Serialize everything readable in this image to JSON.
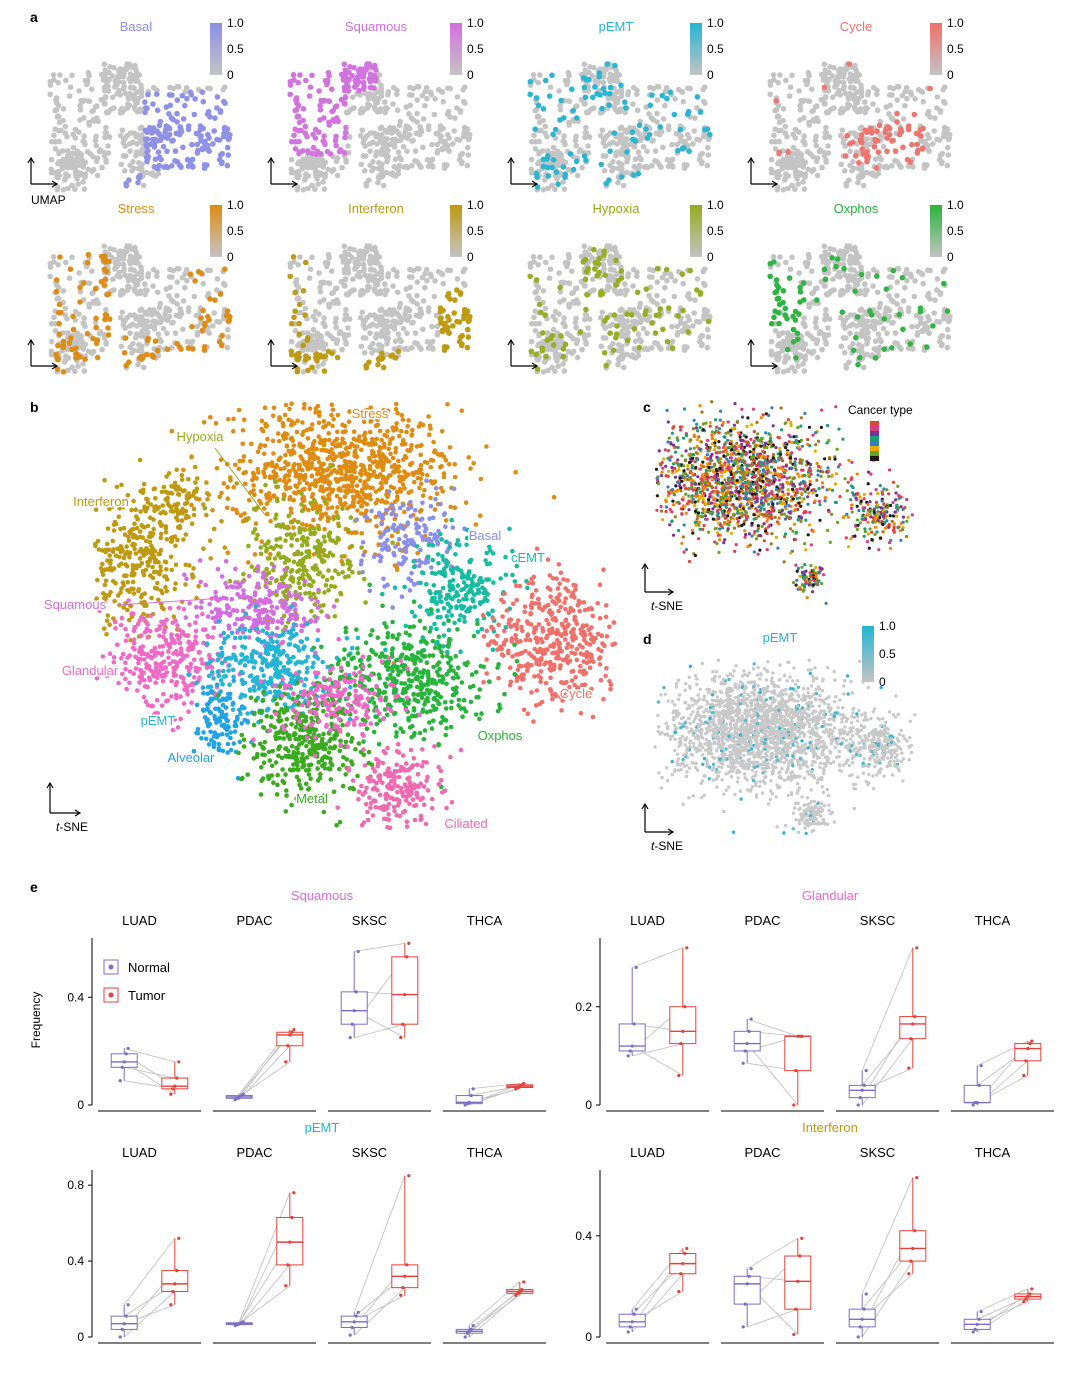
{
  "panels": {
    "a": "a",
    "b": "b",
    "c": "c",
    "d": "d",
    "e": "e"
  },
  "umap_axis_label": "UMAP",
  "tsne_label": "t-SNE",
  "scale_ticks": [
    "1.0",
    "0.5",
    "0"
  ],
  "colors": {
    "Basal": "#8b8fe8",
    "Squamous": "#d36ee0",
    "pEMT": "#23b5d3",
    "Cycle": "#f0706a",
    "Stress": "#de8c12",
    "Interferon": "#bf9a10",
    "Hypoxia": "#94ac1c",
    "Oxphos": "#27b43a",
    "Glandular": "#ef6ac6",
    "cEMT": "#15bda0",
    "Metal": "#3aaa1f",
    "Alveolar": "#22a3e6",
    "Ciliated": "#ef6aae",
    "grey": "#c4c4c4",
    "normal": "#7b6fc4",
    "tumor": "#e3423a"
  },
  "chart_data": [
    {
      "panel": "a",
      "type": "scatter",
      "description_axes": "UMAP",
      "subplots": [
        {
          "title": "Basal",
          "scale": [
            0,
            1.0
          ]
        },
        {
          "title": "Squamous",
          "scale": [
            0,
            1.0
          ]
        },
        {
          "title": "pEMT",
          "scale": [
            0,
            1.0
          ]
        },
        {
          "title": "Cycle",
          "scale": [
            0,
            1.0
          ]
        },
        {
          "title": "Stress",
          "scale": [
            0,
            1.0
          ]
        },
        {
          "title": "Interferon",
          "scale": [
            0,
            1.0
          ]
        },
        {
          "title": "Hypoxia",
          "scale": [
            0,
            1.0
          ]
        },
        {
          "title": "Oxphos",
          "scale": [
            0,
            1.0
          ]
        }
      ]
    },
    {
      "panel": "b",
      "type": "scatter",
      "xlabel": "t-SNE",
      "clusters": [
        "Stress",
        "Hypoxia",
        "Interferon",
        "Basal",
        "cEMT",
        "Squamous",
        "Glandular",
        "Cycle",
        "pEMT",
        "Oxphos",
        "Alveolar",
        "Metal",
        "Ciliated"
      ]
    },
    {
      "panel": "c",
      "type": "scatter",
      "xlabel": "t-SNE",
      "legend_title": "Cancer type"
    },
    {
      "panel": "d",
      "type": "scatter",
      "xlabel": "t-SNE",
      "title": "pEMT",
      "scale": [
        "1.0",
        "0.5",
        "0"
      ]
    },
    {
      "panel": "e",
      "type": "box",
      "ylabel": "Frequency",
      "legend": [
        "Normal",
        "Tumor"
      ],
      "groups": [
        {
          "title": "Squamous",
          "categories": [
            "LUAD",
            "PDAC",
            "SKSC",
            "THCA"
          ],
          "yticks": [
            "0.4",
            "0"
          ],
          "ylim": [
            0,
            0.62
          ],
          "series": [
            {
              "name": "Normal",
              "boxes": [
                [
                  0.09,
                  0.14,
                  0.16,
                  0.19,
                  0.21
                ],
                [
                  0.02,
                  0.025,
                  0.03,
                  0.035,
                  0.04
                ],
                [
                  0.25,
                  0.3,
                  0.35,
                  0.42,
                  0.57
                ],
                [
                  0.0,
                  0.005,
                  0.01,
                  0.035,
                  0.06
                ]
              ]
            },
            {
              "name": "Tumor",
              "boxes": [
                [
                  0.04,
                  0.06,
                  0.07,
                  0.1,
                  0.16
                ],
                [
                  0.16,
                  0.22,
                  0.26,
                  0.27,
                  0.28
                ],
                [
                  0.25,
                  0.3,
                  0.41,
                  0.55,
                  0.6
                ],
                [
                  0.06,
                  0.065,
                  0.07,
                  0.075,
                  0.08
                ]
              ]
            }
          ]
        },
        {
          "title": "Glandular",
          "categories": [
            "LUAD",
            "PDAC",
            "SKSC",
            "THCA"
          ],
          "yticks": [
            "0.2",
            "0"
          ],
          "ylim": [
            0,
            0.34
          ],
          "series": [
            {
              "name": "Normal",
              "boxes": [
                [
                  0.1,
                  0.11,
                  0.12,
                  0.165,
                  0.28
                ],
                [
                  0.085,
                  0.11,
                  0.125,
                  0.15,
                  0.175
                ],
                [
                  0.0,
                  0.015,
                  0.03,
                  0.04,
                  0.07
                ],
                [
                  0.0,
                  0.005,
                  0.005,
                  0.04,
                  0.08
                ]
              ]
            },
            {
              "name": "Tumor",
              "boxes": [
                [
                  0.06,
                  0.125,
                  0.15,
                  0.2,
                  0.32
                ],
                [
                  0.0,
                  0.07,
                  0.14,
                  0.14,
                  0.14
                ],
                [
                  0.075,
                  0.135,
                  0.165,
                  0.18,
                  0.32
                ],
                [
                  0.06,
                  0.09,
                  0.115,
                  0.125,
                  0.13
                ]
              ]
            }
          ]
        },
        {
          "title": "pEMT",
          "categories": [
            "LUAD",
            "PDAC",
            "SKSC",
            "THCA"
          ],
          "yticks": [
            "0.8",
            "0.4",
            "0"
          ],
          "ylim": [
            0,
            0.88
          ],
          "series": [
            {
              "name": "Normal",
              "boxes": [
                [
                  0.0,
                  0.04,
                  0.07,
                  0.11,
                  0.17
                ],
                [
                  0.06,
                  0.065,
                  0.07,
                  0.075,
                  0.08
                ],
                [
                  0.01,
                  0.05,
                  0.08,
                  0.11,
                  0.13
                ],
                [
                  0.0,
                  0.02,
                  0.03,
                  0.04,
                  0.06
                ]
              ]
            },
            {
              "name": "Tumor",
              "boxes": [
                [
                  0.17,
                  0.24,
                  0.28,
                  0.35,
                  0.52
                ],
                [
                  0.27,
                  0.38,
                  0.5,
                  0.63,
                  0.76
                ],
                [
                  0.22,
                  0.26,
                  0.32,
                  0.38,
                  0.85
                ],
                [
                  0.22,
                  0.23,
                  0.24,
                  0.25,
                  0.29
                ]
              ]
            }
          ]
        },
        {
          "title": "Interferon",
          "categories": [
            "LUAD",
            "PDAC",
            "SKSC",
            "THCA"
          ],
          "yticks": [
            "0.4",
            "0"
          ],
          "ylim": [
            0,
            0.66
          ],
          "series": [
            {
              "name": "Normal",
              "boxes": [
                [
                  0.02,
                  0.04,
                  0.06,
                  0.09,
                  0.11
                ],
                [
                  0.04,
                  0.13,
                  0.21,
                  0.24,
                  0.27
                ],
                [
                  0.0,
                  0.04,
                  0.07,
                  0.11,
                  0.17
                ],
                [
                  0.02,
                  0.03,
                  0.05,
                  0.07,
                  0.1
                ]
              ]
            },
            {
              "name": "Tumor",
              "boxes": [
                [
                  0.18,
                  0.25,
                  0.29,
                  0.33,
                  0.35
                ],
                [
                  0.01,
                  0.11,
                  0.22,
                  0.32,
                  0.39
                ],
                [
                  0.25,
                  0.3,
                  0.35,
                  0.42,
                  0.63
                ],
                [
                  0.14,
                  0.15,
                  0.16,
                  0.17,
                  0.19
                ]
              ]
            }
          ]
        }
      ]
    }
  ]
}
